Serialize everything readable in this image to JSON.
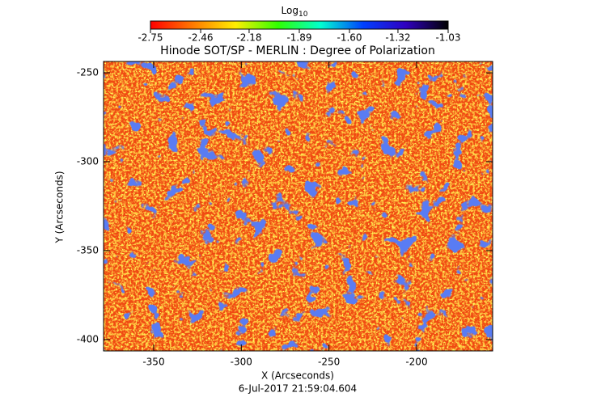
{
  "chart_data": {
    "type": "heatmap",
    "title": "Hinode SOT/SP - MERLIN : Degree of Polarization",
    "x_label": "X (Arcseconds)",
    "y_label": "Y (Arcseconds)",
    "xlim": [
      -378.6,
      -156.6
    ],
    "xticks": [
      -350,
      -300,
      -250,
      -200
    ],
    "ylim": [
      -406.4,
      -243.6
    ],
    "yticks": [
      -400,
      -350,
      -300,
      -250
    ],
    "colorbar": {
      "label": "Log",
      "label_sub": "10",
      "lim": [
        -2.75,
        -1.03
      ],
      "ticks": [
        -2.75,
        -2.46,
        -2.18,
        -1.89,
        {
          "value": -1.6,
          "label": "-1.60"
        },
        -1.32,
        -1.03
      ],
      "colormap": [
        "#ff0000",
        "#ff7a00",
        "#ffee00",
        "#30ff00",
        "#00ffd0",
        "#0040ff",
        "#3000c0",
        "#000000"
      ]
    },
    "footnote": "6-Jul-2017 21:59:04.604"
  }
}
